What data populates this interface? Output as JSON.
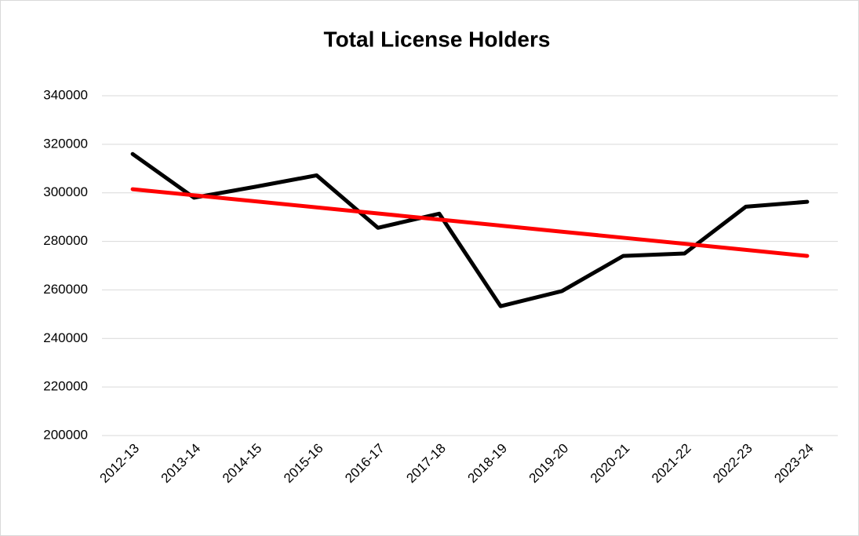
{
  "chart_data": {
    "type": "line",
    "title": "Total License Holders",
    "categories": [
      "2012-13",
      "2013-14",
      "2014-15",
      "2015-16",
      "2016-17",
      "2017-18",
      "2018-19",
      "2019-20",
      "2020-21",
      "2021-22",
      "2022-23",
      "2023-24"
    ],
    "series": [
      {
        "color": "#000000",
        "values": [
          316000,
          298000,
          302500,
          307200,
          285600,
          291400,
          253300,
          259500,
          274000,
          275000,
          294300,
          296300
        ]
      },
      {
        "color": "#ff0000",
        "values": [
          301500,
          299000,
          296500,
          294000,
          291500,
          289000,
          286500,
          284000,
          281500,
          279000,
          276500,
          274000
        ]
      }
    ],
    "ylim": [
      200000,
      340000
    ],
    "yticks": [
      200000,
      220000,
      240000,
      260000,
      280000,
      300000,
      320000,
      340000
    ],
    "grid": true
  }
}
